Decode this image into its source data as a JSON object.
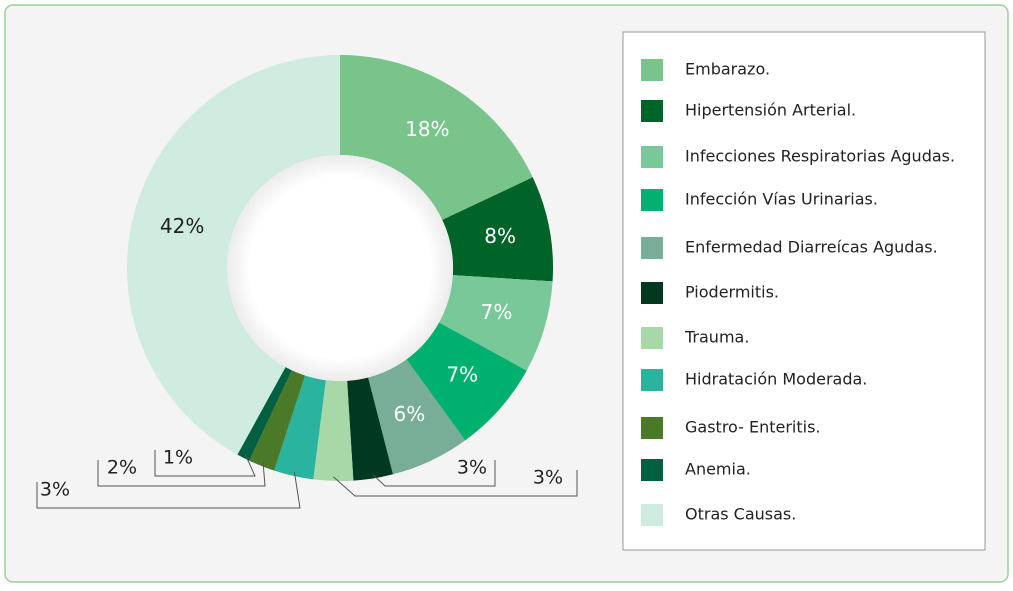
{
  "chart_data": {
    "type": "pie",
    "donut": true,
    "categories": [
      "Embarazo.",
      "Hipertensión Arterial.",
      "Infecciones Respiratorias Agudas.",
      "Infección Vías Urinarias.",
      "Enfermedad Diarreícas Agudas.",
      "Piodermitis.",
      "Trauma.",
      "Hidratación Moderada.",
      "Gastro- Enteritis.",
      "Anemia.",
      "Otras Causas."
    ],
    "values": [
      18,
      8,
      7,
      7,
      6,
      3,
      3,
      3,
      2,
      1,
      42
    ],
    "value_labels": [
      "18%",
      "8%",
      "7%",
      "7%",
      "6%",
      "3%",
      "3%",
      "3%",
      "2%",
      "1%",
      "42%"
    ],
    "colors": [
      "#78c48a",
      "#006428",
      "#78c89a",
      "#00b06e",
      "#78ae98",
      "#003820",
      "#a8d8a8",
      "#2ab4a0",
      "#4a7a28",
      "#006040",
      "#d0ece0"
    ],
    "legend": "right"
  }
}
